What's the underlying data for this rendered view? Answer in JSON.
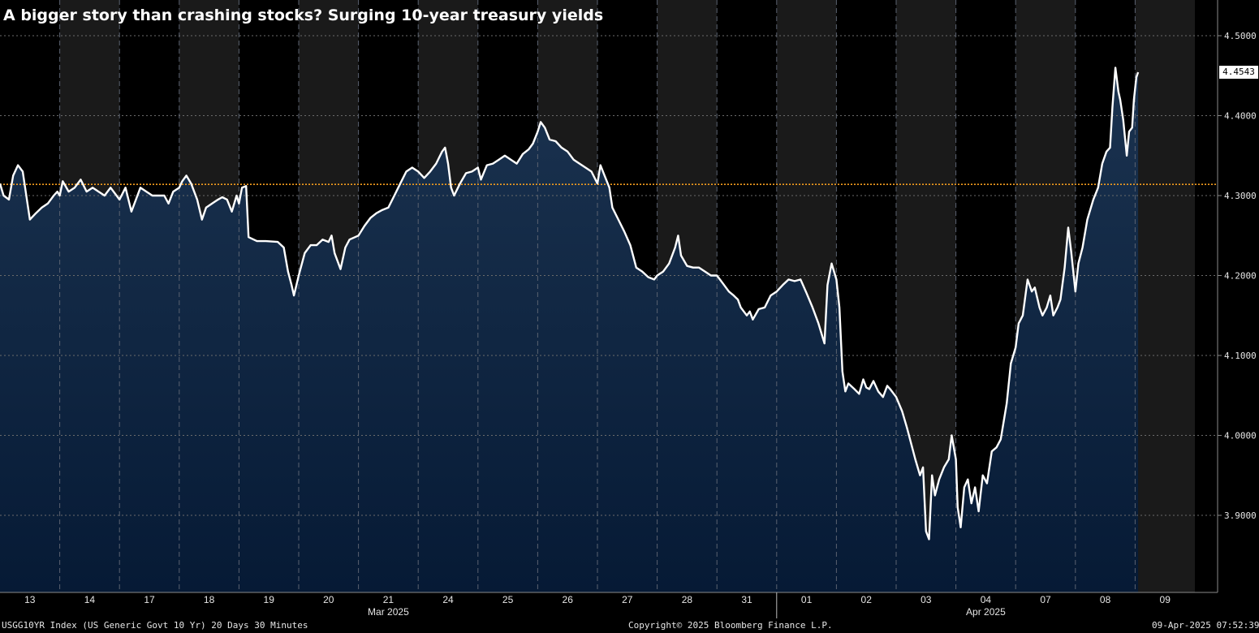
{
  "title": "A bigger story than crashing stocks? Surging 10-year treasury yields",
  "footer": {
    "left": "USGG10YR Index (US Generic Govt 10 Yr) 20 Days 30 Minutes",
    "center": "Copyright© 2025 Bloomberg Finance L.P.",
    "right": "09-Apr-2025 07:52:39"
  },
  "colors": {
    "background": "#000000",
    "shade_band": "#1a1a1a",
    "area_top": "#1b3350",
    "area_bottom": "#061a35",
    "line": "#ffffff",
    "reference_line": "#f39c1e"
  },
  "chart_data": {
    "type": "area",
    "title": "A bigger story than crashing stocks? Surging 10-year treasury yields",
    "xlabel": "",
    "ylabel": "",
    "ylim": [
      3.81,
      4.53
    ],
    "y_ticks": [
      "4.5000",
      "4.4000",
      "4.3000",
      "4.2000",
      "4.1000",
      "4.0000",
      "3.9000"
    ],
    "grid": true,
    "last_value": "4.4543",
    "reference_value": 4.314,
    "months": [
      {
        "label": "Mar 2025",
        "days": [
          "13",
          "14",
          "17",
          "18",
          "19",
          "20",
          "21",
          "24",
          "25",
          "26",
          "27",
          "28",
          "31"
        ]
      },
      {
        "label": "Apr 2025",
        "days": [
          "01",
          "02",
          "03",
          "04",
          "07",
          "08",
          "09"
        ]
      }
    ],
    "series": [
      {
        "values": [
          [
            0,
            4.315
          ],
          [
            0.06,
            4.3
          ],
          [
            0.15,
            4.295
          ],
          [
            0.22,
            4.325
          ],
          [
            0.3,
            4.338
          ],
          [
            0.38,
            4.33
          ],
          [
            0.44,
            4.3
          ],
          [
            0.5,
            4.27
          ],
          [
            0.6,
            4.278
          ],
          [
            0.7,
            4.285
          ],
          [
            0.8,
            4.29
          ],
          [
            0.9,
            4.3
          ],
          [
            0.96,
            4.305
          ],
          [
            1.0,
            4.3
          ],
          [
            1.05,
            4.318
          ],
          [
            1.15,
            4.305
          ],
          [
            1.25,
            4.31
          ],
          [
            1.35,
            4.32
          ],
          [
            1.45,
            4.305
          ],
          [
            1.55,
            4.31
          ],
          [
            1.65,
            4.305
          ],
          [
            1.75,
            4.3
          ],
          [
            1.85,
            4.31
          ],
          [
            2.0,
            4.295
          ],
          [
            2.1,
            4.31
          ],
          [
            2.2,
            4.28
          ],
          [
            2.35,
            4.31
          ],
          [
            2.45,
            4.305
          ],
          [
            2.55,
            4.3
          ],
          [
            2.65,
            4.3
          ],
          [
            2.75,
            4.3
          ],
          [
            2.82,
            4.29
          ],
          [
            2.9,
            4.305
          ],
          [
            3.0,
            4.31
          ],
          [
            3.05,
            4.318
          ],
          [
            3.12,
            4.325
          ],
          [
            3.2,
            4.315
          ],
          [
            3.3,
            4.295
          ],
          [
            3.38,
            4.27
          ],
          [
            3.45,
            4.285
          ],
          [
            3.55,
            4.29
          ],
          [
            3.65,
            4.295
          ],
          [
            3.72,
            4.298
          ],
          [
            3.8,
            4.295
          ],
          [
            3.88,
            4.28
          ],
          [
            3.96,
            4.3
          ],
          [
            4.0,
            4.29
          ],
          [
            4.05,
            4.31
          ],
          [
            4.12,
            4.312
          ],
          [
            4.16,
            4.248
          ],
          [
            4.3,
            4.243
          ],
          [
            4.45,
            4.243
          ],
          [
            4.65,
            4.242
          ],
          [
            4.75,
            4.235
          ],
          [
            4.82,
            4.205
          ],
          [
            4.88,
            4.188
          ],
          [
            4.92,
            4.175
          ],
          [
            5.0,
            4.2
          ],
          [
            5.1,
            4.228
          ],
          [
            5.2,
            4.238
          ],
          [
            5.3,
            4.238
          ],
          [
            5.4,
            4.245
          ],
          [
            5.5,
            4.242
          ],
          [
            5.55,
            4.25
          ],
          [
            5.6,
            4.228
          ],
          [
            5.7,
            4.208
          ],
          [
            5.78,
            4.235
          ],
          [
            5.85,
            4.245
          ],
          [
            6.0,
            4.25
          ],
          [
            6.1,
            4.262
          ],
          [
            6.2,
            4.272
          ],
          [
            6.3,
            4.278
          ],
          [
            6.4,
            4.282
          ],
          [
            6.5,
            4.285
          ],
          [
            6.6,
            4.3
          ],
          [
            6.7,
            4.315
          ],
          [
            6.8,
            4.33
          ],
          [
            6.9,
            4.335
          ],
          [
            7.0,
            4.33
          ],
          [
            7.1,
            4.322
          ],
          [
            7.2,
            4.33
          ],
          [
            7.3,
            4.34
          ],
          [
            7.4,
            4.355
          ],
          [
            7.45,
            4.36
          ],
          [
            7.5,
            4.34
          ],
          [
            7.55,
            4.31
          ],
          [
            7.6,
            4.3
          ],
          [
            7.7,
            4.315
          ],
          [
            7.8,
            4.328
          ],
          [
            7.9,
            4.33
          ],
          [
            8.0,
            4.335
          ],
          [
            8.05,
            4.32
          ],
          [
            8.15,
            4.338
          ],
          [
            8.25,
            4.34
          ],
          [
            8.35,
            4.345
          ],
          [
            8.45,
            4.35
          ],
          [
            8.55,
            4.345
          ],
          [
            8.65,
            4.34
          ],
          [
            8.75,
            4.352
          ],
          [
            8.85,
            4.358
          ],
          [
            8.92,
            4.365
          ],
          [
            9.0,
            4.38
          ],
          [
            9.05,
            4.392
          ],
          [
            9.12,
            4.385
          ],
          [
            9.2,
            4.37
          ],
          [
            9.3,
            4.368
          ],
          [
            9.4,
            4.36
          ],
          [
            9.5,
            4.355
          ],
          [
            9.6,
            4.345
          ],
          [
            9.7,
            4.34
          ],
          [
            9.8,
            4.335
          ],
          [
            9.9,
            4.33
          ],
          [
            10.0,
            4.315
          ],
          [
            10.05,
            4.338
          ],
          [
            10.12,
            4.325
          ],
          [
            10.2,
            4.31
          ],
          [
            10.25,
            4.285
          ],
          [
            10.35,
            4.27
          ],
          [
            10.45,
            4.255
          ],
          [
            10.55,
            4.238
          ],
          [
            10.65,
            4.21
          ],
          [
            10.75,
            4.205
          ],
          [
            10.85,
            4.198
          ],
          [
            10.95,
            4.195
          ],
          [
            11.0,
            4.2
          ],
          [
            11.1,
            4.205
          ],
          [
            11.2,
            4.215
          ],
          [
            11.3,
            4.235
          ],
          [
            11.35,
            4.25
          ],
          [
            11.4,
            4.225
          ],
          [
            11.5,
            4.212
          ],
          [
            11.6,
            4.21
          ],
          [
            11.7,
            4.21
          ],
          [
            11.8,
            4.205
          ],
          [
            11.9,
            4.2
          ],
          [
            12.0,
            4.2
          ],
          [
            12.1,
            4.19
          ],
          [
            12.2,
            4.18
          ],
          [
            12.28,
            4.175
          ],
          [
            12.35,
            4.17
          ],
          [
            12.4,
            4.16
          ],
          [
            12.5,
            4.15
          ],
          [
            12.55,
            4.155
          ],
          [
            12.6,
            4.145
          ],
          [
            12.7,
            4.158
          ],
          [
            12.8,
            4.16
          ],
          [
            12.9,
            4.175
          ],
          [
            13.0,
            4.18
          ],
          [
            13.1,
            4.188
          ],
          [
            13.2,
            4.195
          ],
          [
            13.3,
            4.193
          ],
          [
            13.4,
            4.195
          ],
          [
            13.5,
            4.178
          ],
          [
            13.6,
            4.16
          ],
          [
            13.7,
            4.14
          ],
          [
            13.8,
            4.115
          ],
          [
            13.85,
            4.188
          ],
          [
            13.92,
            4.215
          ],
          [
            14.0,
            4.195
          ],
          [
            14.05,
            4.16
          ],
          [
            14.1,
            4.08
          ],
          [
            14.15,
            4.055
          ],
          [
            14.2,
            4.065
          ],
          [
            14.3,
            4.058
          ],
          [
            14.38,
            4.052
          ],
          [
            14.45,
            4.07
          ],
          [
            14.5,
            4.06
          ],
          [
            14.55,
            4.058
          ],
          [
            14.62,
            4.068
          ],
          [
            14.7,
            4.055
          ],
          [
            14.78,
            4.048
          ],
          [
            14.85,
            4.062
          ],
          [
            14.9,
            4.058
          ],
          [
            15.0,
            4.048
          ],
          [
            15.1,
            4.03
          ],
          [
            15.18,
            4.01
          ],
          [
            15.25,
            3.99
          ],
          [
            15.32,
            3.97
          ],
          [
            15.4,
            3.95
          ],
          [
            15.45,
            3.96
          ],
          [
            15.5,
            3.88
          ],
          [
            15.55,
            3.87
          ],
          [
            15.6,
            3.95
          ],
          [
            15.65,
            3.925
          ],
          [
            15.72,
            3.945
          ],
          [
            15.8,
            3.96
          ],
          [
            15.88,
            3.97
          ],
          [
            15.93,
            4.0
          ],
          [
            16.0,
            3.97
          ],
          [
            16.03,
            3.91
          ],
          [
            16.08,
            3.885
          ],
          [
            16.14,
            3.935
          ],
          [
            16.2,
            3.945
          ],
          [
            16.26,
            3.915
          ],
          [
            16.32,
            3.935
          ],
          [
            16.38,
            3.905
          ],
          [
            16.45,
            3.95
          ],
          [
            16.52,
            3.94
          ],
          [
            16.6,
            3.98
          ],
          [
            16.68,
            3.985
          ],
          [
            16.75,
            3.995
          ],
          [
            16.85,
            4.04
          ],
          [
            16.92,
            4.09
          ],
          [
            17.0,
            4.11
          ],
          [
            17.05,
            4.14
          ],
          [
            17.12,
            4.15
          ],
          [
            17.2,
            4.195
          ],
          [
            17.27,
            4.18
          ],
          [
            17.32,
            4.185
          ],
          [
            17.4,
            4.16
          ],
          [
            17.45,
            4.15
          ],
          [
            17.52,
            4.16
          ],
          [
            17.58,
            4.175
          ],
          [
            17.63,
            4.15
          ],
          [
            17.7,
            4.16
          ],
          [
            17.75,
            4.17
          ],
          [
            17.82,
            4.21
          ],
          [
            17.88,
            4.26
          ],
          [
            17.93,
            4.23
          ],
          [
            18.0,
            4.18
          ],
          [
            18.05,
            4.215
          ],
          [
            18.12,
            4.235
          ],
          [
            18.2,
            4.27
          ],
          [
            18.3,
            4.295
          ],
          [
            18.38,
            4.31
          ],
          [
            18.45,
            4.34
          ],
          [
            18.52,
            4.355
          ],
          [
            18.58,
            4.36
          ],
          [
            18.62,
            4.41
          ],
          [
            18.67,
            4.46
          ],
          [
            18.72,
            4.43
          ],
          [
            18.75,
            4.42
          ],
          [
            18.8,
            4.395
          ],
          [
            18.86,
            4.35
          ],
          [
            18.9,
            4.38
          ],
          [
            18.95,
            4.385
          ],
          [
            18.98,
            4.42
          ],
          [
            19.02,
            4.448
          ],
          [
            19.05,
            4.4543
          ]
        ]
      }
    ]
  }
}
